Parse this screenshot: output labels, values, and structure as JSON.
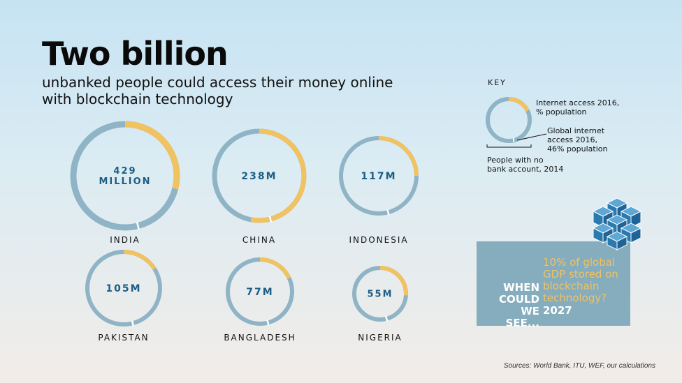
{
  "header": {
    "title": "Two billion",
    "subtitle": "unbanked people could access their money online with blockchain technology"
  },
  "chart_data": {
    "type": "donut",
    "title": "Two billion",
    "subtitle": "unbanked people could access their money online with blockchain technology",
    "global_internet_access_pct": 46,
    "series": [
      {
        "country": "INDIA",
        "value_label_lines": [
          "429",
          "MILLION"
        ],
        "unbanked_millions": 429,
        "internet_access_pct": 29
      },
      {
        "country": "CHINA",
        "value_label_lines": [
          "238M"
        ],
        "unbanked_millions": 238,
        "internet_access_pct": 53
      },
      {
        "country": "INDONESIA",
        "value_label_lines": [
          "117M"
        ],
        "unbanked_millions": 117,
        "internet_access_pct": 25
      },
      {
        "country": "PAKISTAN",
        "value_label_lines": [
          "105M"
        ],
        "unbanked_millions": 105,
        "internet_access_pct": 16
      },
      {
        "country": "BANGLADESH",
        "value_label_lines": [
          "77M"
        ],
        "unbanked_millions": 77,
        "internet_access_pct": 18
      },
      {
        "country": "NIGERIA",
        "value_label_lines": [
          "55M"
        ],
        "unbanked_millions": 55,
        "internet_access_pct": 26
      }
    ]
  },
  "key": {
    "title": "KEY",
    "internet_label": "Internet access 2016, % population",
    "global_label": "Global internet access 2016, 46% population",
    "bank_label": "People with no bank account, 2014"
  },
  "callout": {
    "left_text": "WHEN COULD WE SEE...",
    "right_text": "10% of global GDP stored on blockchain technology?",
    "year": "2027"
  },
  "sources": "Sources: World Bank, ITU, WEF, our calculations",
  "colors": {
    "ring_base": "#8fb4c6",
    "internet": "#f0c262",
    "value_text": "#1e5e84",
    "callout_bg": "#86adbd",
    "cube": "#2a7ab0"
  }
}
